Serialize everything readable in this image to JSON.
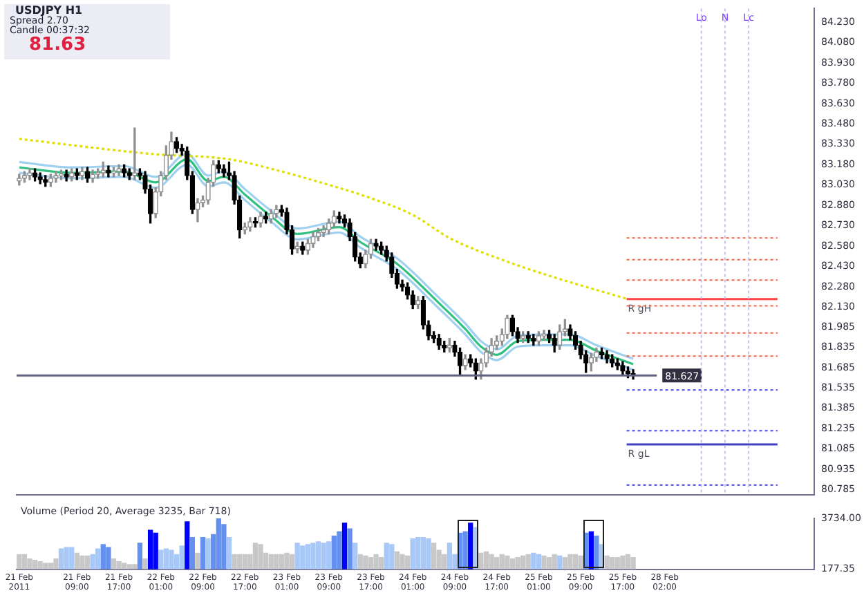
{
  "chart_data": [
    {
      "type": "candlestick",
      "title": "USDJPY H1",
      "annotations": [
        "Spread 2.70",
        "Candle 00:37:32",
        "81.63"
      ],
      "tick_labels": "y",
      "grid": false,
      "categories": [
        null,
        null,
        null,
        null,
        null,
        null,
        null,
        null,
        null,
        null,
        null,
        null,
        null,
        null,
        null,
        null,
        null,
        null,
        null,
        null,
        null,
        null,
        null,
        null,
        null,
        null,
        null,
        null,
        null,
        null,
        null,
        null,
        null,
        null,
        null,
        null,
        null,
        null,
        null,
        null,
        null,
        null,
        null,
        null,
        null,
        null,
        null,
        null,
        null,
        null,
        null,
        null,
        null,
        null,
        null,
        null,
        null,
        null,
        null,
        null,
        null,
        null,
        null,
        null,
        null,
        null,
        null,
        null,
        null,
        null,
        null,
        null,
        null,
        null,
        null,
        null,
        null,
        null,
        null,
        null,
        null,
        null,
        null,
        null,
        null,
        null,
        null,
        null,
        null,
        null,
        null,
        null,
        null,
        null,
        null,
        null,
        null,
        null,
        null,
        null,
        null,
        null,
        null,
        null,
        null,
        null,
        null,
        null,
        null,
        null,
        null,
        null,
        null,
        null,
        null,
        null,
        null,
        null,
        null,
        null,
        null,
        null,
        null,
        null,
        null,
        null,
        null,
        null,
        null,
        null,
        null,
        null,
        null,
        null,
        null,
        null,
        null,
        null,
        null,
        null,
        null,
        null,
        null,
        null,
        null,
        null,
        null,
        null,
        null,
        null,
        null,
        null
      ],
      "ohlc": [
        [
          83.06,
          83.11,
          83.03,
          83.08
        ],
        [
          83.08,
          83.13,
          83.05,
          83.1
        ],
        [
          83.1,
          83.15,
          83.07,
          83.12
        ],
        [
          83.12,
          83.15,
          83.06,
          83.09
        ],
        [
          83.09,
          83.12,
          83.04,
          83.07
        ],
        [
          83.07,
          83.1,
          83.02,
          83.05
        ],
        [
          83.05,
          83.11,
          83.02,
          83.08
        ],
        [
          83.08,
          83.13,
          83.05,
          83.1
        ],
        [
          83.1,
          83.14,
          83.07,
          83.11
        ],
        [
          83.11,
          83.14,
          83.06,
          83.09
        ],
        [
          83.09,
          83.15,
          83.06,
          83.12
        ],
        [
          83.12,
          83.15,
          83.07,
          83.1
        ],
        [
          83.1,
          83.16,
          83.07,
          83.13
        ],
        [
          83.13,
          83.16,
          83.05,
          83.08
        ],
        [
          83.08,
          83.14,
          83.05,
          83.11
        ],
        [
          83.11,
          83.15,
          83.08,
          83.12
        ],
        [
          83.12,
          83.2,
          83.09,
          83.14
        ],
        [
          83.14,
          83.17,
          83.09,
          83.12
        ],
        [
          83.12,
          83.16,
          83.09,
          83.13
        ],
        [
          83.13,
          83.18,
          83.1,
          83.15
        ],
        [
          83.15,
          83.18,
          83.09,
          83.12
        ],
        [
          83.12,
          83.15,
          83.07,
          83.1
        ],
        [
          83.1,
          83.45,
          83.07,
          83.12
        ],
        [
          83.12,
          83.15,
          83.07,
          83.1
        ],
        [
          83.1,
          83.13,
          82.97,
          83.0
        ],
        [
          83.0,
          83.03,
          82.75,
          82.82
        ],
        [
          82.82,
          83.01,
          82.79,
          82.98
        ],
        [
          82.98,
          83.13,
          82.95,
          83.1
        ],
        [
          83.1,
          83.32,
          83.07,
          83.25
        ],
        [
          83.25,
          83.42,
          83.22,
          83.35
        ],
        [
          83.35,
          83.38,
          83.27,
          83.3
        ],
        [
          83.3,
          83.33,
          83.25,
          83.28
        ],
        [
          83.28,
          83.31,
          83.07,
          83.1
        ],
        [
          83.1,
          83.13,
          82.82,
          82.85
        ],
        [
          82.85,
          82.93,
          82.76,
          82.9
        ],
        [
          82.9,
          82.95,
          82.87,
          82.92
        ],
        [
          82.92,
          83.08,
          82.89,
          83.05
        ],
        [
          83.05,
          83.21,
          83.02,
          83.18
        ],
        [
          83.18,
          83.21,
          83.12,
          83.15
        ],
        [
          83.15,
          83.18,
          83.09,
          83.12
        ],
        [
          83.12,
          83.2,
          83.07,
          83.1
        ],
        [
          83.1,
          83.13,
          82.89,
          82.92
        ],
        [
          82.92,
          82.95,
          82.64,
          82.7
        ],
        [
          82.7,
          82.75,
          82.67,
          82.72
        ],
        [
          82.72,
          82.79,
          82.69,
          82.76
        ],
        [
          82.76,
          82.79,
          82.72,
          82.75
        ],
        [
          82.75,
          82.83,
          82.72,
          82.8
        ],
        [
          82.8,
          82.83,
          82.75,
          82.78
        ],
        [
          82.78,
          82.85,
          82.75,
          82.82
        ],
        [
          82.82,
          82.88,
          82.79,
          82.85
        ],
        [
          82.85,
          82.88,
          82.8,
          82.83
        ],
        [
          82.83,
          82.86,
          82.67,
          82.7
        ],
        [
          82.7,
          82.73,
          82.52,
          82.56
        ],
        [
          82.56,
          82.61,
          82.53,
          82.58
        ],
        [
          82.58,
          82.61,
          82.52,
          82.55
        ],
        [
          82.55,
          82.63,
          82.52,
          82.6
        ],
        [
          82.6,
          82.68,
          82.57,
          82.65
        ],
        [
          82.65,
          82.71,
          82.62,
          82.68
        ],
        [
          82.68,
          82.73,
          82.65,
          82.7
        ],
        [
          82.7,
          82.78,
          82.67,
          82.75
        ],
        [
          82.75,
          82.84,
          82.72,
          82.8
        ],
        [
          82.8,
          82.83,
          82.75,
          82.78
        ],
        [
          82.78,
          82.81,
          82.72,
          82.75
        ],
        [
          82.75,
          82.78,
          82.62,
          82.65
        ],
        [
          82.65,
          82.68,
          82.47,
          82.5
        ],
        [
          82.5,
          82.53,
          82.42,
          82.45
        ],
        [
          82.45,
          82.55,
          82.42,
          82.52
        ],
        [
          82.52,
          82.63,
          82.49,
          82.6
        ],
        [
          82.6,
          82.63,
          82.55,
          82.58
        ],
        [
          82.58,
          82.61,
          82.52,
          82.55
        ],
        [
          82.55,
          82.58,
          82.47,
          82.5
        ],
        [
          82.5,
          82.53,
          82.35,
          82.38
        ],
        [
          82.38,
          82.41,
          82.27,
          82.3
        ],
        [
          82.3,
          82.33,
          82.25,
          82.28
        ],
        [
          82.28,
          82.31,
          82.19,
          82.22
        ],
        [
          82.22,
          82.25,
          82.12,
          82.15
        ],
        [
          82.15,
          82.21,
          82.12,
          82.18
        ],
        [
          82.18,
          82.21,
          81.97,
          82.0
        ],
        [
          82.0,
          82.03,
          81.89,
          81.92
        ],
        [
          81.92,
          81.95,
          81.87,
          81.9
        ],
        [
          81.9,
          81.93,
          81.82,
          81.85
        ],
        [
          81.85,
          81.88,
          81.8,
          81.83
        ],
        [
          81.83,
          81.9,
          81.8,
          81.85
        ],
        [
          81.85,
          81.88,
          81.77,
          81.8
        ],
        [
          81.8,
          81.83,
          81.63,
          81.7
        ],
        [
          81.7,
          81.78,
          81.67,
          81.75
        ],
        [
          81.75,
          81.78,
          81.69,
          81.72
        ],
        [
          81.72,
          81.75,
          81.6,
          81.66
        ],
        [
          81.66,
          81.75,
          81.6,
          81.72
        ],
        [
          81.72,
          81.83,
          81.69,
          81.8
        ],
        [
          81.8,
          81.9,
          81.77,
          81.85
        ],
        [
          81.85,
          81.92,
          81.82,
          81.88
        ],
        [
          81.88,
          81.97,
          81.85,
          81.93
        ],
        [
          81.93,
          82.07,
          81.9,
          82.05
        ],
        [
          82.05,
          82.07,
          81.92,
          81.95
        ],
        [
          81.95,
          81.98,
          81.87,
          81.9
        ],
        [
          81.9,
          81.95,
          81.87,
          81.92
        ],
        [
          81.92,
          81.95,
          81.87,
          81.9
        ],
        [
          81.9,
          81.93,
          81.85,
          81.88
        ],
        [
          81.88,
          81.95,
          81.85,
          81.92
        ],
        [
          81.92,
          81.96,
          81.89,
          81.93
        ],
        [
          81.93,
          81.96,
          81.87,
          81.9
        ],
        [
          81.9,
          81.93,
          81.8,
          81.85
        ],
        [
          81.85,
          82.0,
          81.82,
          81.95
        ],
        [
          81.95,
          82.04,
          81.92,
          81.97
        ],
        [
          81.97,
          82.0,
          81.89,
          81.92
        ],
        [
          81.92,
          81.95,
          81.82,
          81.85
        ],
        [
          81.85,
          81.88,
          81.75,
          81.78
        ],
        [
          81.78,
          81.81,
          81.65,
          81.72
        ],
        [
          81.72,
          81.79,
          81.66,
          81.76
        ],
        [
          81.76,
          81.83,
          81.73,
          81.8
        ],
        [
          81.8,
          81.83,
          81.75,
          81.78
        ],
        [
          81.78,
          81.81,
          81.72,
          81.75
        ],
        [
          81.75,
          81.78,
          81.69,
          81.72
        ],
        [
          81.72,
          81.75,
          81.67,
          81.7
        ],
        [
          81.7,
          81.73,
          81.63,
          81.66
        ],
        [
          81.66,
          81.69,
          81.61,
          81.64
        ],
        [
          81.64,
          81.67,
          81.6,
          81.63
        ],
        null,
        null,
        null,
        null,
        null,
        null,
        null,
        null,
        null,
        null,
        null,
        null,
        null,
        null,
        null,
        null,
        null,
        null,
        null,
        null,
        null,
        null,
        null,
        null,
        null,
        null,
        null,
        null,
        null,
        null,
        null,
        null,
        null,
        null
      ],
      "series": [
        {
          "type": "line",
          "color": "#e0e000",
          "line_style": "dotted",
          "values": [
            83.37,
            null,
            null,
            null,
            null,
            null,
            null,
            null,
            null,
            null,
            null,
            null,
            null,
            null,
            null,
            null,
            null,
            null,
            null,
            null,
            null,
            null,
            null,
            null,
            null,
            83.26,
            null,
            null,
            null,
            null,
            null,
            null,
            null,
            null,
            null,
            null,
            null,
            null,
            null,
            null,
            83.22,
            null,
            null,
            null,
            null,
            null,
            null,
            null,
            null,
            null,
            83.13,
            null,
            null,
            null,
            null,
            null,
            null,
            null,
            null,
            null,
            83.02,
            null,
            null,
            null,
            null,
            82.96,
            null,
            null,
            null,
            null,
            null,
            null,
            null,
            null,
            null,
            82.81,
            null,
            null,
            null,
            null,
            null,
            null,
            82.64,
            null,
            null,
            null,
            null,
            null,
            null,
            null,
            null,
            null,
            82.48,
            null,
            null,
            null,
            null,
            null,
            null,
            null,
            null,
            null,
            82.35,
            null,
            null,
            null,
            null,
            null,
            null,
            null,
            null,
            null,
            null,
            null,
            null,
            null,
            82.19,
            null,
            null,
            null,
            null,
            null,
            null,
            null,
            null,
            null,
            null,
            null,
            null,
            null,
            null,
            null,
            null,
            null,
            null,
            null,
            null,
            null,
            null,
            null,
            null,
            null,
            null,
            null,
            null,
            null,
            null,
            null,
            null,
            null,
            null,
            null
          ]
        },
        {
          "type": "line",
          "color": "#30c080",
          "line_style": "solid",
          "values": [
            83.16,
            null,
            null,
            null,
            null,
            null,
            null,
            null,
            null,
            null,
            83.12,
            null,
            null,
            null,
            null,
            null,
            null,
            null,
            null,
            null,
            83.13,
            null,
            null,
            null,
            null,
            null,
            83.05,
            null,
            null,
            null,
            null,
            null,
            83.22,
            null,
            null,
            null,
            83.06,
            null,
            null,
            83.09,
            null,
            null,
            null,
            82.96,
            null,
            null,
            null,
            null,
            82.8,
            null,
            null,
            null,
            null,
            82.67,
            null,
            null,
            null,
            null,
            null,
            null,
            null,
            82.72,
            null,
            null,
            null,
            82.61,
            null,
            null,
            null,
            null,
            null,
            null,
            82.45,
            null,
            null,
            null,
            null,
            null,
            null,
            null,
            82.16,
            null,
            null,
            null,
            null,
            81.97,
            null,
            null,
            81.84,
            null,
            null,
            81.78,
            null,
            null,
            null,
            81.88,
            null,
            null,
            null,
            null,
            81.89,
            null,
            null,
            null,
            null,
            81.89,
            null,
            null,
            null,
            null,
            81.81,
            null,
            null,
            null,
            null,
            null,
            null,
            81.71,
            null,
            null,
            null,
            null,
            null,
            null,
            null,
            null,
            null,
            null,
            null,
            null,
            null,
            null,
            null,
            null,
            null,
            null,
            null,
            null,
            null,
            null,
            null,
            null,
            null,
            null,
            null,
            null,
            null,
            null,
            null,
            null,
            null,
            null
          ]
        },
        {
          "type": "line",
          "color": "#a0d0f0",
          "line_style": "solid",
          "values": [
            83.12,
            null,
            null,
            null,
            null,
            null,
            null,
            null,
            null,
            null,
            83.08,
            null,
            null,
            null,
            null,
            null,
            null,
            null,
            null,
            null,
            83.09,
            null,
            null,
            null,
            null,
            null,
            83.01,
            null,
            null,
            null,
            null,
            null,
            83.18,
            null,
            null,
            null,
            83.02,
            null,
            null,
            83.05,
            null,
            null,
            null,
            82.92,
            null,
            null,
            null,
            null,
            82.76,
            null,
            null,
            null,
            null,
            82.63,
            null,
            null,
            null,
            null,
            null,
            null,
            null,
            82.68,
            null,
            null,
            null,
            82.57,
            null,
            null,
            null,
            null,
            null,
            null,
            82.41,
            null,
            null,
            null,
            null,
            null,
            null,
            null,
            82.12,
            null,
            null,
            null,
            null,
            81.93,
            null,
            null,
            81.8,
            null,
            null,
            81.74,
            null,
            null,
            null,
            81.84,
            null,
            null,
            null,
            null,
            81.85,
            null,
            null,
            null,
            null,
            81.85,
            null,
            null,
            null,
            null,
            81.77,
            null,
            null,
            null,
            null,
            null,
            null,
            81.67,
            null,
            null,
            null,
            null,
            null,
            null,
            null,
            null,
            null,
            null,
            null,
            null,
            null,
            null,
            null,
            null,
            null,
            null,
            null,
            null,
            null,
            null,
            null,
            null,
            null,
            null,
            null,
            null,
            null,
            null,
            null,
            null,
            null,
            null
          ]
        },
        {
          "type": "line",
          "color": "#a0d0f0",
          "line_style": "solid",
          "values": [
            83.2,
            null,
            null,
            null,
            null,
            null,
            null,
            null,
            null,
            null,
            83.16,
            null,
            null,
            null,
            null,
            null,
            null,
            null,
            null,
            null,
            83.17,
            null,
            null,
            null,
            null,
            null,
            83.09,
            null,
            null,
            null,
            null,
            null,
            83.26,
            null,
            null,
            null,
            83.1,
            null,
            null,
            83.13,
            null,
            null,
            null,
            83.0,
            null,
            null,
            null,
            null,
            82.84,
            null,
            null,
            null,
            null,
            82.71,
            null,
            null,
            null,
            null,
            null,
            null,
            null,
            82.76,
            null,
            null,
            null,
            82.65,
            null,
            null,
            null,
            null,
            null,
            null,
            82.49,
            null,
            null,
            null,
            null,
            null,
            null,
            null,
            82.2,
            null,
            null,
            null,
            null,
            82.01,
            null,
            null,
            81.88,
            null,
            null,
            81.82,
            null,
            null,
            null,
            81.92,
            null,
            null,
            null,
            null,
            81.93,
            null,
            null,
            null,
            null,
            81.93,
            null,
            null,
            null,
            null,
            81.85,
            null,
            null,
            null,
            null,
            null,
            null,
            81.75,
            null,
            null,
            null,
            null,
            null,
            null,
            null,
            null,
            null,
            null,
            null,
            null,
            null,
            null,
            null,
            null,
            null,
            null,
            null,
            null,
            null,
            null,
            null,
            null,
            null,
            null,
            null,
            null,
            null,
            null,
            null,
            null,
            null,
            null
          ]
        }
      ],
      "ref_lines": [
        {
          "axis": "y",
          "value": 81.627,
          "label": "81.627",
          "color": "#606080",
          "line_style": "solid"
        },
        {
          "axis": "y",
          "value": 82.64,
          "label": null,
          "color": "#ff6040",
          "line_style": "dotted"
        },
        {
          "axis": "y",
          "value": 82.48,
          "label": null,
          "color": "#ff6040",
          "line_style": "dotted"
        },
        {
          "axis": "y",
          "value": 82.33,
          "label": null,
          "color": "#ff6040",
          "line_style": "dotted"
        },
        {
          "axis": "y",
          "value": 82.19,
          "label": "R gH",
          "color": "#ff4040",
          "line_style": "solid"
        },
        {
          "axis": "y",
          "value": 82.14,
          "label": null,
          "color": "#ff6040",
          "line_style": "dotted"
        },
        {
          "axis": "y",
          "value": 81.94,
          "label": null,
          "color": "#ff6040",
          "line_style": "dotted"
        },
        {
          "axis": "y",
          "value": 81.77,
          "label": null,
          "color": "#ff6040",
          "line_style": "dotted"
        },
        {
          "axis": "y",
          "value": 81.52,
          "label": null,
          "color": "#4040ff",
          "line_style": "dotted"
        },
        {
          "axis": "y",
          "value": 81.22,
          "label": null,
          "color": "#4040ff",
          "line_style": "dotted"
        },
        {
          "axis": "y",
          "value": 81.12,
          "label": "R gL",
          "color": "#4040c0",
          "line_style": "solid"
        },
        {
          "axis": "y",
          "value": 80.82,
          "label": null,
          "color": "#4040ff",
          "line_style": "dotted"
        },
        {
          "axis": "x",
          "label": "Lo",
          "color": "#c0c0e8",
          "line_style": "dotted"
        },
        {
          "axis": "x",
          "label": "N",
          "color": "#c0c0e8",
          "line_style": "dotted"
        },
        {
          "axis": "x",
          "label": "Lc",
          "color": "#c0c0e8",
          "line_style": "dotted"
        }
      ],
      "ylim": [
        80.75,
        84.33
      ],
      "yticks": [
        {
          "value": 84.23,
          "label": "84.230"
        },
        {
          "value": 84.08,
          "label": "84.080"
        },
        {
          "value": 83.93,
          "label": "83.930"
        },
        {
          "value": 83.78,
          "label": "83.780"
        },
        {
          "value": 83.63,
          "label": "83.630"
        },
        {
          "value": 83.48,
          "label": "83.480"
        },
        {
          "value": 83.33,
          "label": "83.330"
        },
        {
          "value": 83.18,
          "label": "83.180"
        },
        {
          "value": 83.03,
          "label": "83.030"
        },
        {
          "value": 82.88,
          "label": "82.880"
        },
        {
          "value": 82.73,
          "label": "82.730"
        },
        {
          "value": 82.58,
          "label": "82.580"
        },
        {
          "value": 82.43,
          "label": "82.430"
        },
        {
          "value": 82.28,
          "label": "82.280"
        },
        {
          "value": 82.13,
          "label": "82.130"
        },
        {
          "value": 81.985,
          "label": "81.985"
        },
        {
          "value": 81.835,
          "label": "81.835"
        },
        {
          "value": 81.685,
          "label": "81.685"
        },
        {
          "value": 81.535,
          "label": "81.535"
        },
        {
          "value": 81.385,
          "label": "81.385"
        },
        {
          "value": 81.235,
          "label": "81.235"
        },
        {
          "value": 81.085,
          "label": "81.085"
        },
        {
          "value": 80.935,
          "label": "80.935"
        },
        {
          "value": 80.785,
          "label": "80.785"
        }
      ]
    },
    {
      "type": "bar",
      "title": "Volume (Period 20, Average 3235, Bar 718)",
      "grid": false,
      "categories": [
        "21 Feb 2011",
        null,
        null,
        null,
        null,
        null,
        null,
        null,
        null,
        null,
        null,
        "21 Feb 09:00",
        null,
        null,
        null,
        null,
        null,
        null,
        null,
        "21 Feb 17:00",
        null,
        null,
        null,
        null,
        null,
        null,
        null,
        "22 Feb 01:00",
        null,
        null,
        null,
        null,
        null,
        null,
        null,
        "22 Feb 09:00",
        null,
        null,
        null,
        null,
        null,
        null,
        null,
        "22 Feb 17:00",
        null,
        null,
        null,
        null,
        null,
        null,
        null,
        "23 Feb 01:00",
        null,
        null,
        null,
        null,
        null,
        null,
        null,
        "23 Feb 09:00",
        null,
        null,
        null,
        null,
        null,
        null,
        null,
        "23 Feb 17:00",
        null,
        null,
        null,
        null,
        null,
        null,
        null,
        "24 Feb 01:00",
        null,
        null,
        null,
        null,
        null,
        null,
        null,
        "24 Feb 09:00",
        null,
        null,
        null,
        null,
        null,
        null,
        null,
        "24 Feb 17:00",
        null,
        null,
        null,
        null,
        null,
        null,
        null,
        "25 Feb 01:00",
        null,
        null,
        null,
        null,
        null,
        null,
        null,
        "25 Feb 09:00",
        null,
        null,
        null,
        null,
        null,
        null,
        null,
        "25 Feb 17:00",
        null,
        null,
        null,
        null,
        null,
        null,
        null,
        "28 Feb 02:00",
        null,
        null,
        null,
        null,
        null,
        null,
        null,
        null,
        null,
        null,
        null,
        null,
        null,
        null,
        null,
        null,
        null,
        null,
        null,
        null,
        null,
        null,
        null,
        null,
        null,
        null,
        null,
        null
      ],
      "values": [
        1200,
        1200,
        900,
        800,
        700,
        600,
        600,
        900,
        1600,
        1700,
        1700,
        1300,
        1100,
        1100,
        1200,
        1600,
        1900,
        1700,
        900,
        700,
        600,
        500,
        500,
        2000,
        900,
        2900,
        2700,
        1500,
        1600,
        1500,
        1200,
        1800,
        3500,
        2400,
        1300,
        2400,
        2300,
        2600,
        3700,
        3300,
        2400,
        1200,
        1200,
        1200,
        1200,
        2000,
        1900,
        1300,
        1200,
        1200,
        1200,
        1300,
        1200,
        2000,
        1800,
        1900,
        2000,
        2100,
        2000,
        2100,
        2500,
        2800,
        3400,
        3000,
        2000,
        1200,
        1100,
        1000,
        1200,
        1000,
        2000,
        1900,
        1400,
        1200,
        1100,
        2300,
        2400,
        2400,
        2300,
        2000,
        1500,
        1200,
        2000,
        1200,
        2700,
        2800,
        3400,
        3100,
        1300,
        1400,
        1200,
        1000,
        1200,
        1100,
        900,
        1000,
        1100,
        1200,
        1300,
        1200,
        1100,
        1000,
        1200,
        1100,
        1000,
        1200,
        1200,
        1100,
        2700,
        2800,
        2500,
        1900,
        1100,
        1000,
        1000,
        1100,
        1200,
        1000,
        null,
        null,
        null,
        null,
        null,
        null,
        null,
        null,
        null,
        null,
        null,
        null,
        null,
        null,
        null,
        null,
        null,
        null,
        null,
        null,
        null,
        null,
        null,
        null,
        null,
        null,
        null,
        null,
        null,
        null,
        null,
        null,
        null,
        null
      ],
      "colors": [
        "#c8c8c8",
        "#c8c8c8",
        "#c8c8c8",
        "#c8c8c8",
        "#c8c8c8",
        "#c8c8c8",
        "#c8c8c8",
        "#c8c8c8",
        "#a8c8f8",
        "#a8c8f8",
        "#a8c8f8",
        "#c8c8c8",
        "#c8c8c8",
        "#c8c8c8",
        "#a8c8f8",
        "#a8c8f8",
        "#6490f0",
        "#6490f0",
        "#c8c8c8",
        "#c8c8c8",
        "#c8c8c8",
        "#c8c8c8",
        "#c8c8c8",
        "#6490f0",
        "#c8c8c8",
        "#0000ff",
        "#0000ff",
        "#a8c8f8",
        "#a8c8f8",
        "#a8c8f8",
        "#a8c8f8",
        "#a8c8f8",
        "#0000ff",
        "#6490f0",
        "#c8c8c8",
        "#6490f0",
        "#a8c8f8",
        "#6490f0",
        "#6490f0",
        "#6490f0",
        "#a8c8f8",
        "#c8c8c8",
        "#c8c8c8",
        "#c8c8c8",
        "#c8c8c8",
        "#c8c8c8",
        "#c8c8c8",
        "#c8c8c8",
        "#c8c8c8",
        "#c8c8c8",
        "#c8c8c8",
        "#c8c8c8",
        "#c8c8c8",
        "#a8c8f8",
        "#a8c8f8",
        "#a8c8f8",
        "#a8c8f8",
        "#a8c8f8",
        "#a8c8f8",
        "#a8c8f8",
        "#6490f0",
        "#6490f0",
        "#0000ff",
        "#6490f0",
        "#a8c8f8",
        "#c8c8c8",
        "#c8c8c8",
        "#c8c8c8",
        "#c8c8c8",
        "#c8c8c8",
        "#a8c8f8",
        "#a8c8f8",
        "#c8c8c8",
        "#c8c8c8",
        "#c8c8c8",
        "#a8c8f8",
        "#a8c8f8",
        "#a8c8f8",
        "#a8c8f8",
        "#c8c8c8",
        "#c8c8c8",
        "#c8c8c8",
        "#a8c8f8",
        "#a8c8f8",
        "#6490f0",
        "#6490f0",
        "#0000ff",
        "#a8c8f8",
        "#c8c8c8",
        "#c8c8c8",
        "#c8c8c8",
        "#c8c8c8",
        "#c8c8c8",
        "#c8c8c8",
        "#c8c8c8",
        "#c8c8c8",
        "#c8c8c8",
        "#c8c8c8",
        "#a8c8f8",
        "#a8c8f8",
        "#c8c8c8",
        "#c8c8c8",
        "#c8c8c8",
        "#a8c8f8",
        "#c8c8c8",
        "#c8c8c8",
        "#c8c8c8",
        "#c8c8c8",
        "#6490f0",
        "#0000ff",
        "#6490f0",
        "#a8c8f8",
        "#c8c8c8",
        "#c8c8c8",
        "#c8c8c8",
        "#c8c8c8",
        "#c8c8c8",
        "#c8c8c8",
        null,
        null,
        null,
        null,
        null,
        null,
        null,
        null,
        null,
        null,
        null,
        null,
        null,
        null,
        null,
        null,
        null,
        null,
        null,
        null,
        null,
        null,
        null,
        null,
        null,
        null,
        null,
        null,
        null,
        null,
        null,
        null,
        null,
        null
      ],
      "ylim": [
        177.35,
        3734
      ],
      "yticks": [
        {
          "value": 3734,
          "label": "3734.00"
        },
        177.35
      ]
    }
  ]
}
